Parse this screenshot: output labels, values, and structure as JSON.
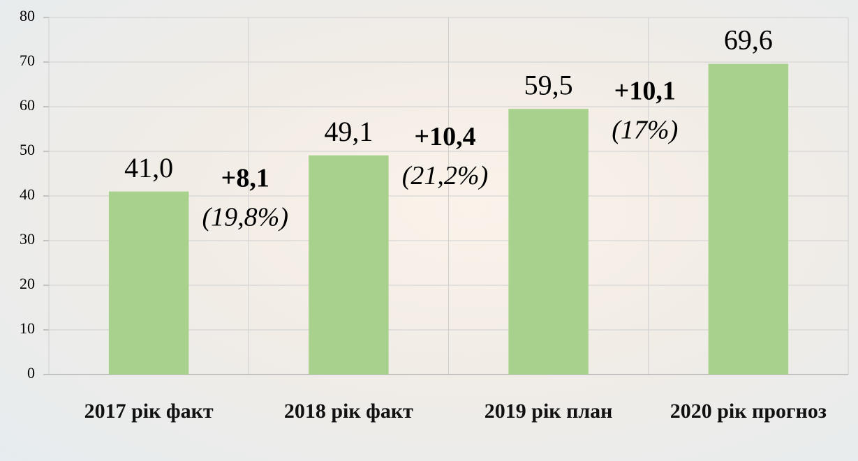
{
  "chart_data": {
    "type": "bar",
    "categories": [
      "2017 рік факт",
      "2018 рік факт",
      "2019 рік план",
      "2020 рік прогноз"
    ],
    "values": [
      41.0,
      49.1,
      59.5,
      69.6
    ],
    "value_labels": [
      "41,0",
      "49,1",
      "59,5",
      "69,6"
    ],
    "color": "#a9d18e",
    "ylim": [
      0,
      80
    ],
    "yticks": [
      0,
      10,
      20,
      30,
      40,
      50,
      60,
      70,
      80
    ],
    "grid": true,
    "annotations": [
      {
        "change": "+8,1",
        "percent": "(19,8%)"
      },
      {
        "change": "+10,4",
        "percent": "(21,2%)"
      },
      {
        "change": "+10,1",
        "percent": "(17%)"
      }
    ]
  }
}
